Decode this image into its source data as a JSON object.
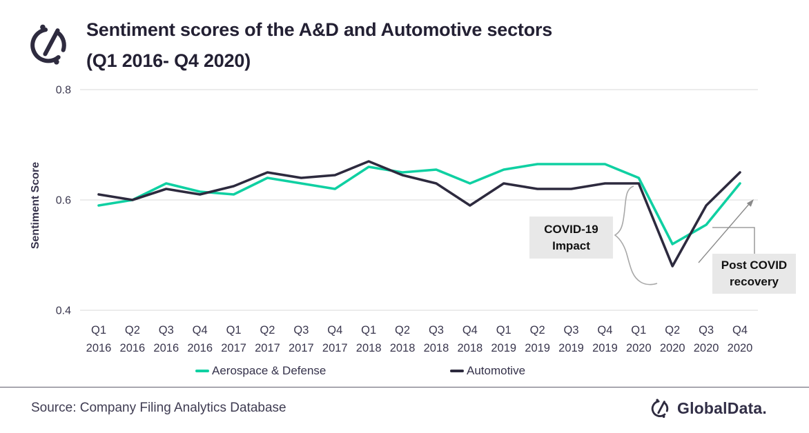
{
  "header": {
    "title_line1": "Sentiment scores of the A&D and Automotive sectors",
    "title_line2": "(Q1 2016- Q4 2020)"
  },
  "chart_data": {
    "type": "line",
    "title": "Sentiment scores of the A&D and Automotive sectors (Q1 2016- Q4 2020)",
    "xlabel": "",
    "ylabel": "Sentiment Score",
    "ylim": [
      0.4,
      0.8
    ],
    "yticks": [
      0.8,
      0.6,
      0.4
    ],
    "grid": "horizontal",
    "legend_position": "bottom",
    "categories": [
      "Q1 2016",
      "Q2 2016",
      "Q3 2016",
      "Q4 2016",
      "Q1 2017",
      "Q2 2017",
      "Q3 2017",
      "Q4 2017",
      "Q1 2018",
      "Q2 2018",
      "Q3 2018",
      "Q4 2018",
      "Q1 2019",
      "Q2 2019",
      "Q3 2019",
      "Q4 2019",
      "Q1 2020",
      "Q2 2020",
      "Q3 2020",
      "Q4 2020"
    ],
    "series": [
      {
        "name": "Aerospace & Defense",
        "color": "#0fd0a2",
        "values": [
          0.59,
          0.6,
          0.63,
          0.615,
          0.61,
          0.64,
          0.63,
          0.62,
          0.66,
          0.65,
          0.655,
          0.63,
          0.655,
          0.665,
          0.665,
          0.665,
          0.64,
          0.52,
          0.555,
          0.63
        ]
      },
      {
        "name": "Automotive",
        "color": "#2d2a3e",
        "values": [
          0.61,
          0.6,
          0.62,
          0.61,
          0.625,
          0.65,
          0.64,
          0.645,
          0.67,
          0.645,
          0.63,
          0.59,
          0.63,
          0.62,
          0.62,
          0.63,
          0.63,
          0.48,
          0.59,
          0.65
        ]
      }
    ],
    "annotations": [
      {
        "id": "covid-impact",
        "line1": "COVID-19",
        "line2": "Impact"
      },
      {
        "id": "post-covid-recovery",
        "line1": "Post COVID",
        "line2": "recovery"
      }
    ]
  },
  "footer": {
    "source": "Source: Company Filing Analytics Database",
    "brand": "GlobalData."
  },
  "colors": {
    "accent_teal": "#0fd0a2",
    "dark_navy": "#2d2a3e",
    "gridline": "#d8d8d8",
    "annotation_gray": "#8a8a8a",
    "box_bg": "#e8e8e8"
  }
}
